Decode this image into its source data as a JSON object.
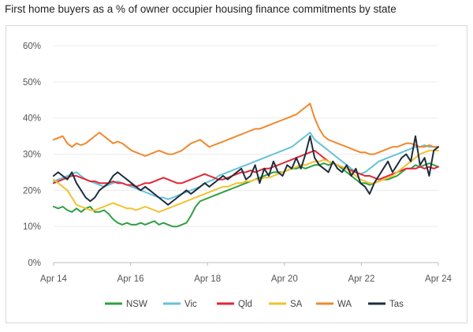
{
  "chart_data": {
    "type": "line",
    "title": "First home buyers as a % of owner occupier housing finance commitments by state",
    "xlabel": "",
    "ylabel": "",
    "x_start": "Apr 14",
    "x_end": "Apr 24",
    "x_ticks": [
      "Apr 14",
      "Apr 16",
      "Apr 18",
      "Apr 20",
      "Apr 22",
      "Apr 24"
    ],
    "y_ticks": [
      "0%",
      "10%",
      "20%",
      "30%",
      "40%",
      "50%",
      "60%"
    ],
    "ylim": [
      0,
      60
    ],
    "grid": "horizontal",
    "legend": "bottom",
    "series": [
      {
        "name": "NSW",
        "color": "#2ea043",
        "values": [
          15.5,
          15,
          15.5,
          14.5,
          14,
          15,
          14,
          15,
          15.5,
          14,
          14,
          14.5,
          13.5,
          12,
          11,
          10.5,
          11,
          10.5,
          10.5,
          11,
          10.5,
          11,
          11.5,
          10.5,
          11,
          10.5,
          10,
          10,
          10.5,
          11,
          13,
          15.5,
          17,
          17.5,
          18,
          18.5,
          19,
          19.5,
          20,
          20.5,
          21,
          21.5,
          22,
          22.5,
          23,
          23.5,
          24,
          24.5,
          25,
          25,
          25,
          25.5,
          26,
          26,
          26.5,
          26,
          26.5,
          27,
          27,
          27.5,
          27,
          27.5,
          27,
          26,
          25,
          24,
          23,
          22,
          22,
          21.5,
          22,
          22.5,
          23,
          23,
          23.5,
          24,
          25,
          26,
          26,
          27,
          26.5,
          27,
          27.5,
          27,
          26.5
        ]
      },
      {
        "name": "Vic",
        "color": "#66c2d7",
        "values": [
          22.5,
          23,
          23.5,
          24,
          24.5,
          25,
          24,
          23,
          22.5,
          22,
          21.5,
          21,
          21.5,
          22,
          22.5,
          22,
          21.5,
          21,
          20.5,
          20,
          19.5,
          19,
          18.5,
          18,
          18,
          17.5,
          18,
          18.5,
          19,
          19.5,
          20,
          20.5,
          21,
          22,
          22.5,
          23,
          24,
          24.5,
          25,
          25.5,
          26,
          26.5,
          27,
          27.5,
          28,
          28.5,
          29,
          29.5,
          30,
          30.5,
          31,
          31.5,
          32,
          33,
          34,
          35,
          36,
          34,
          33,
          32,
          31,
          30,
          29,
          28,
          27,
          26,
          25,
          24.5,
          25,
          26,
          27,
          28,
          28.5,
          29,
          29.5,
          30,
          30.5,
          31,
          31.5,
          32,
          32,
          32.5,
          32,
          32,
          32
        ]
      },
      {
        "name": "Qld",
        "color": "#e32636",
        "values": [
          22,
          22.5,
          23,
          23.5,
          24,
          24,
          23.5,
          23,
          22.5,
          22.5,
          22,
          22,
          22,
          22.5,
          22,
          22,
          21.5,
          21.5,
          21,
          21.5,
          22,
          22,
          22.5,
          23,
          23.5,
          23,
          22.5,
          22,
          22,
          22.5,
          23,
          23.5,
          24,
          24.5,
          24,
          23.5,
          23,
          23,
          23.5,
          24,
          24.5,
          25,
          25,
          25.5,
          25,
          25.5,
          26,
          26,
          26.5,
          27,
          27.5,
          28,
          28.5,
          29,
          29.5,
          30,
          30.5,
          31,
          30,
          29,
          28,
          27.5,
          27,
          26.5,
          26,
          25.5,
          25,
          24.5,
          24,
          24,
          23.5,
          23,
          23.5,
          24,
          24.5,
          25,
          25.5,
          26,
          26,
          26,
          26.5,
          26,
          26.5,
          26,
          26.5
        ]
      },
      {
        "name": "SA",
        "color": "#f2c12e",
        "values": [
          23,
          22,
          21,
          20,
          18,
          16,
          15.5,
          15,
          14.5,
          14.5,
          15,
          15.5,
          16,
          16.5,
          16,
          15.5,
          15,
          15,
          14.5,
          15,
          15.5,
          15,
          14.5,
          14,
          14.5,
          15,
          15.5,
          16,
          16.5,
          17,
          17.5,
          18,
          18.5,
          19,
          19.5,
          20,
          20.5,
          21,
          21,
          21.5,
          22,
          22,
          22.5,
          22.5,
          23,
          23,
          23.5,
          23.5,
          24,
          24.5,
          25,
          25.5,
          26,
          26.5,
          27,
          27,
          27.5,
          28,
          28,
          28.5,
          28,
          27.5,
          27,
          26.5,
          26,
          25,
          24,
          23,
          22.5,
          22,
          22,
          22.5,
          23,
          23.5,
          24,
          25,
          26,
          27,
          28,
          29,
          30,
          30.5,
          31,
          31,
          31
        ]
      },
      {
        "name": "WA",
        "color": "#f0882e",
        "values": [
          34,
          34.5,
          35,
          33,
          32,
          33,
          32.5,
          33,
          34,
          35,
          36,
          35,
          34,
          33,
          33.5,
          33,
          32,
          31,
          30.5,
          30,
          29.5,
          30,
          30.5,
          31,
          30.5,
          30,
          30,
          30.5,
          31,
          32,
          33,
          33.5,
          34,
          33,
          32,
          32.5,
          33,
          33.5,
          34,
          34.5,
          35,
          35.5,
          36,
          36.5,
          37,
          37,
          37.5,
          38,
          38.5,
          39,
          39.5,
          40,
          40.5,
          41,
          42,
          43,
          44,
          40,
          37,
          35,
          34,
          33.5,
          33,
          32.5,
          32,
          31.5,
          31,
          30.5,
          30.5,
          30,
          30,
          30.5,
          31,
          31.5,
          32,
          32,
          32.5,
          33,
          33,
          32.5,
          32,
          32,
          32.5,
          32,
          32
        ]
      },
      {
        "name": "Tas",
        "color": "#1e2d3d",
        "values": [
          24,
          25,
          24,
          23,
          25,
          22,
          20,
          18,
          17,
          18,
          20,
          21,
          22,
          24,
          25,
          24,
          23,
          22,
          21,
          20,
          21,
          20,
          19,
          18,
          17,
          16,
          17,
          18,
          19,
          20,
          19,
          20,
          21,
          22,
          21,
          22,
          23,
          24,
          23,
          24,
          25,
          26,
          23,
          24,
          27,
          22,
          26,
          24,
          28,
          25,
          24,
          27,
          26,
          29,
          26,
          30,
          35,
          29,
          27,
          26,
          25,
          28,
          26,
          25,
          27,
          24,
          26,
          22,
          21,
          19,
          22,
          24,
          26,
          28,
          25,
          27,
          29,
          30,
          28,
          35,
          27,
          29,
          24,
          31,
          32
        ]
      }
    ]
  }
}
